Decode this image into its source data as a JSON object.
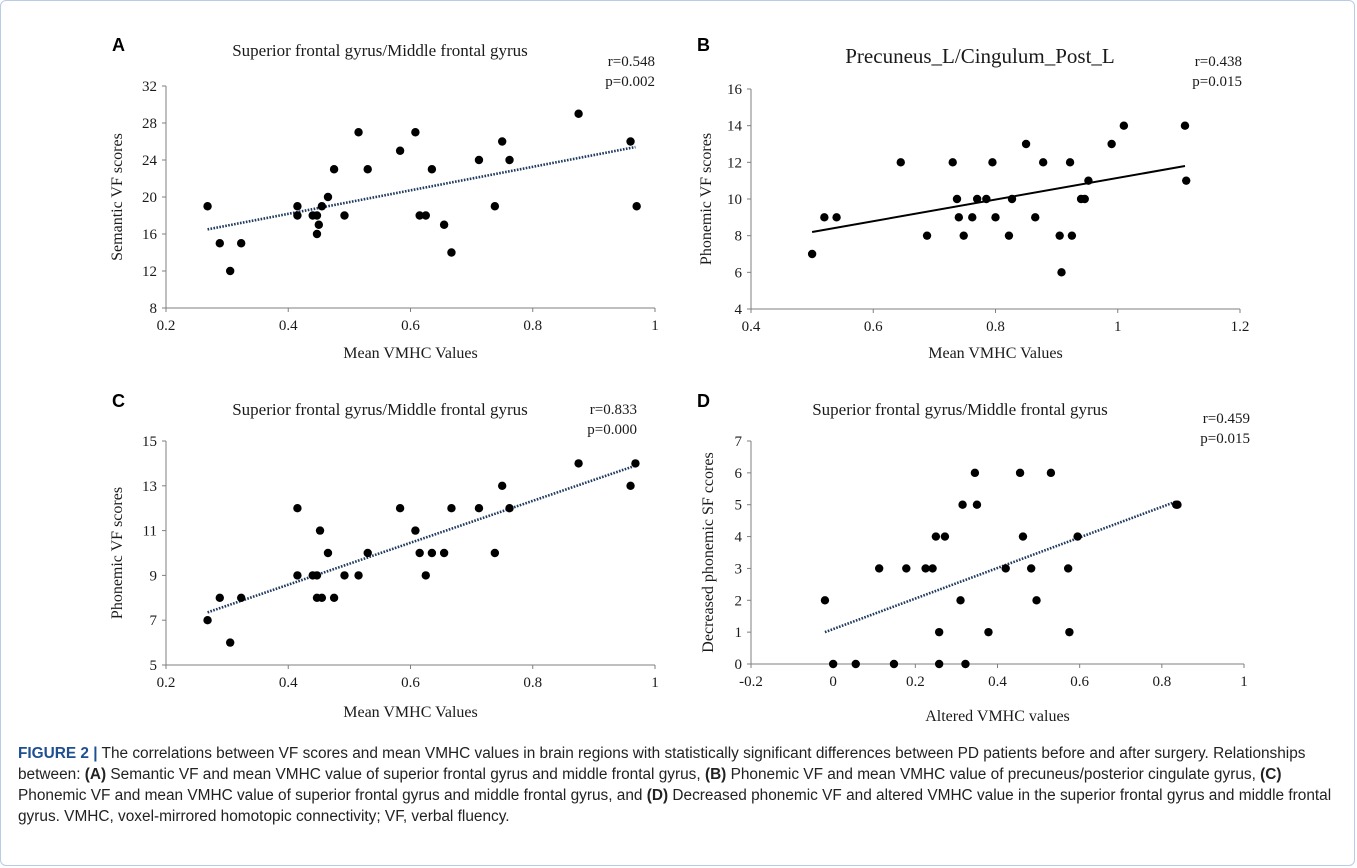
{
  "chart_data": [
    {
      "type": "scatter",
      "panel": "A",
      "title": "Superior frontal gyrus/Middle frontal gyrus",
      "xlabel": "Mean VMHC Values",
      "ylabel": "Semantic VF scores",
      "xlim": [
        0.2,
        1
      ],
      "ylim": [
        8,
        32
      ],
      "xticks": [
        "0.2",
        "0.4",
        "0.6",
        "0.8",
        "1"
      ],
      "yticks": [
        "8",
        "12",
        "16",
        "20",
        "24",
        "28",
        "32"
      ],
      "stats": [
        "r=0.548",
        "p=0.002"
      ],
      "trendline": {
        "style": "dotted",
        "x": [
          0.268,
          0.968
        ],
        "y": [
          16.5,
          25.4
        ]
      },
      "points": [
        [
          0.268,
          19
        ],
        [
          0.288,
          15
        ],
        [
          0.305,
          12
        ],
        [
          0.323,
          15
        ],
        [
          0.415,
          19
        ],
        [
          0.415,
          18
        ],
        [
          0.44,
          18
        ],
        [
          0.447,
          18
        ],
        [
          0.447,
          16
        ],
        [
          0.45,
          17
        ],
        [
          0.455,
          19
        ],
        [
          0.465,
          20
        ],
        [
          0.475,
          23
        ],
        [
          0.492,
          18
        ],
        [
          0.515,
          27
        ],
        [
          0.53,
          23
        ],
        [
          0.583,
          25
        ],
        [
          0.608,
          27
        ],
        [
          0.615,
          18
        ],
        [
          0.625,
          18
        ],
        [
          0.635,
          23
        ],
        [
          0.655,
          17
        ],
        [
          0.667,
          14
        ],
        [
          0.712,
          24
        ],
        [
          0.738,
          19
        ],
        [
          0.75,
          26
        ],
        [
          0.762,
          24
        ],
        [
          0.875,
          29
        ],
        [
          0.96,
          26
        ],
        [
          0.97,
          19
        ]
      ]
    },
    {
      "type": "scatter",
      "panel": "B",
      "title": "Precuneus_L/Cingulum_Post_L",
      "xlabel": "Mean VMHC Values",
      "ylabel": "Phonemic VF scores",
      "xlim": [
        0.4,
        1.2
      ],
      "ylim": [
        4,
        16
      ],
      "xticks": [
        "0.4",
        "0.6",
        "0.8",
        "1",
        "1.2"
      ],
      "yticks": [
        "4",
        "6",
        "8",
        "10",
        "12",
        "14",
        "16"
      ],
      "stats": [
        "r=0.438",
        "p=0.015"
      ],
      "trendline": {
        "style": "solid",
        "x": [
          0.5,
          1.11
        ],
        "y": [
          8.2,
          11.8
        ]
      },
      "points": [
        [
          0.5,
          7
        ],
        [
          0.52,
          9
        ],
        [
          0.54,
          9
        ],
        [
          0.645,
          12
        ],
        [
          0.688,
          8
        ],
        [
          0.73,
          12
        ],
        [
          0.737,
          10
        ],
        [
          0.74,
          9
        ],
        [
          0.748,
          8
        ],
        [
          0.762,
          9
        ],
        [
          0.77,
          10
        ],
        [
          0.785,
          10
        ],
        [
          0.795,
          12
        ],
        [
          0.8,
          9
        ],
        [
          0.822,
          8
        ],
        [
          0.827,
          10
        ],
        [
          0.85,
          13
        ],
        [
          0.865,
          9
        ],
        [
          0.878,
          12
        ],
        [
          0.905,
          8
        ],
        [
          0.908,
          6
        ],
        [
          0.922,
          12
        ],
        [
          0.925,
          8
        ],
        [
          0.94,
          10
        ],
        [
          0.946,
          10
        ],
        [
          0.952,
          11
        ],
        [
          0.99,
          13
        ],
        [
          1.01,
          14
        ],
        [
          1.11,
          14
        ],
        [
          1.112,
          11
        ]
      ]
    },
    {
      "type": "scatter",
      "panel": "C",
      "title": "Superior frontal gyrus/Middle frontal gyrus",
      "xlabel": "Mean VMHC Values",
      "ylabel": "Phonemic VF scores",
      "xlim": [
        0.2,
        1
      ],
      "ylim": [
        5,
        15
      ],
      "xticks": [
        "0.2",
        "0.4",
        "0.6",
        "0.8",
        "1"
      ],
      "yticks": [
        "5",
        "7",
        "9",
        "11",
        "13",
        "15"
      ],
      "stats": [
        "r=0.833",
        "p=0.000"
      ],
      "trendline": {
        "style": "dotted",
        "x": [
          0.268,
          0.968
        ],
        "y": [
          7.35,
          13.9
        ]
      },
      "points": [
        [
          0.268,
          7
        ],
        [
          0.288,
          8
        ],
        [
          0.305,
          6
        ],
        [
          0.323,
          8
        ],
        [
          0.415,
          12
        ],
        [
          0.415,
          9
        ],
        [
          0.44,
          9
        ],
        [
          0.447,
          9
        ],
        [
          0.447,
          8
        ],
        [
          0.452,
          11
        ],
        [
          0.455,
          8
        ],
        [
          0.465,
          10
        ],
        [
          0.475,
          8
        ],
        [
          0.492,
          9
        ],
        [
          0.515,
          9
        ],
        [
          0.53,
          10
        ],
        [
          0.583,
          12
        ],
        [
          0.608,
          11
        ],
        [
          0.615,
          10
        ],
        [
          0.625,
          9
        ],
        [
          0.635,
          10
        ],
        [
          0.655,
          10
        ],
        [
          0.667,
          12
        ],
        [
          0.712,
          12
        ],
        [
          0.738,
          10
        ],
        [
          0.75,
          13
        ],
        [
          0.762,
          12
        ],
        [
          0.875,
          14
        ],
        [
          0.96,
          13
        ],
        [
          0.968,
          14
        ]
      ]
    },
    {
      "type": "scatter",
      "panel": "D",
      "title": "Superior frontal gyrus/Middle frontal gyrus",
      "xlabel": "Altered VMHC values",
      "ylabel": "Decreased phonemic SF ccores",
      "xlim": [
        -0.2,
        1
      ],
      "ylim": [
        0,
        7
      ],
      "xticks": [
        "-0.2",
        "0",
        "0.2",
        "0.4",
        "0.6",
        "0.8",
        "1"
      ],
      "yticks": [
        "0",
        "1",
        "2",
        "3",
        "4",
        "5",
        "6",
        "7"
      ],
      "stats": [
        "r=0.459",
        "p=0.015"
      ],
      "trendline": {
        "style": "dotted",
        "x": [
          -0.02,
          0.835
        ],
        "y": [
          1.0,
          5.1
        ]
      },
      "points": [
        [
          -0.02,
          2
        ],
        [
          0.0,
          0
        ],
        [
          0.055,
          0
        ],
        [
          0.112,
          3
        ],
        [
          0.148,
          0
        ],
        [
          0.178,
          3
        ],
        [
          0.225,
          3
        ],
        [
          0.242,
          3
        ],
        [
          0.25,
          4
        ],
        [
          0.258,
          1
        ],
        [
          0.258,
          0
        ],
        [
          0.272,
          4
        ],
        [
          0.31,
          2
        ],
        [
          0.315,
          5
        ],
        [
          0.322,
          0
        ],
        [
          0.345,
          6
        ],
        [
          0.35,
          5
        ],
        [
          0.378,
          1
        ],
        [
          0.42,
          3
        ],
        [
          0.455,
          6
        ],
        [
          0.462,
          4
        ],
        [
          0.482,
          3
        ],
        [
          0.495,
          2
        ],
        [
          0.53,
          6
        ],
        [
          0.572,
          3
        ],
        [
          0.575,
          1
        ],
        [
          0.595,
          4
        ],
        [
          0.835,
          5
        ],
        [
          0.838,
          5
        ]
      ]
    }
  ],
  "caption": {
    "label": "FIGURE 2 |",
    "text1": " The correlations between VF scores and mean VMHC values in brain regions with statistically significant differences between PD patients before and after surgery. Relationships between: ",
    "ref_a": "(A)",
    "text2": " Semantic VF and mean VMHC value of superior frontal gyrus and middle frontal gyrus, ",
    "ref_b": "(B)",
    "text3": " Phonemic VF and mean VMHC value of precuneus/posterior cingulate gyrus, ",
    "ref_c": "(C)",
    "text4": " Phonemic VF and mean VMHC value of superior frontal gyrus and middle frontal gyrus, and ",
    "ref_d": "(D)",
    "text5": " Decreased phonemic VF and altered VMHC value in the superior frontal gyrus and middle frontal gyrus. VMHC, voxel-mirrored homotopic connectivity; VF, verbal fluency."
  }
}
